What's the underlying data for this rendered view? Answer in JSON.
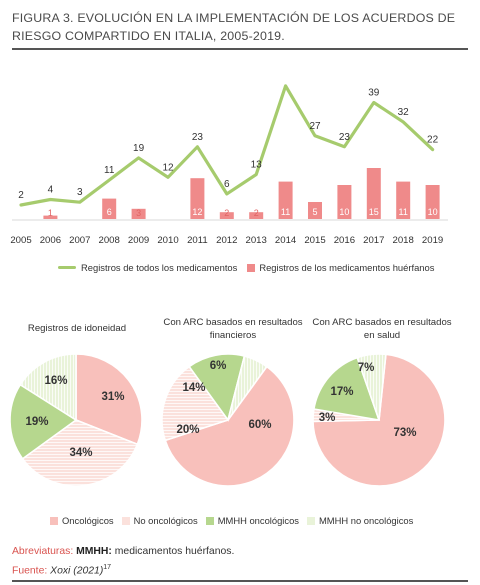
{
  "title": "Figura 3. Evolución en la implementación de los acuerdos de riesgo compartido en Italia, 2005-2019.",
  "colors": {
    "green_line": "#a6cb6d",
    "red_bar": "#ef8a8a",
    "oncologicos": "#f8c0bb",
    "no_oncologicos": "#fbe1dc",
    "mmhh_onco": "#b6d78e",
    "mmhh_no_onco": "#e9f3d9",
    "label_red": "#e06464"
  },
  "chart_data": [
    {
      "type": "line+bar",
      "categories": [
        "2005",
        "2006",
        "2007",
        "2008",
        "2009",
        "2010",
        "2011",
        "2012",
        "2013",
        "2014",
        "2015",
        "2016",
        "2017",
        "2018",
        "2019"
      ],
      "series": [
        {
          "name": "Registros de todos los medicamentos",
          "type": "line",
          "values": [
            2,
            4,
            3,
            11,
            19,
            12,
            23,
            6,
            13,
            45,
            27,
            23,
            39,
            32,
            22
          ],
          "labels": [
            "2",
            "4",
            "3",
            "11",
            "19",
            "12",
            "23",
            "6",
            "13",
            "",
            "27",
            "23",
            "39",
            "32",
            "22"
          ]
        },
        {
          "name": "Registros de los medicamentos huérfanos",
          "type": "bar",
          "values": [
            0,
            1,
            0,
            6,
            3,
            0,
            12,
            2,
            2,
            11,
            5,
            10,
            15,
            11,
            10
          ],
          "labels": [
            "",
            "1",
            "",
            "6",
            "3",
            "",
            "12",
            "2",
            "2",
            "11",
            "5",
            "10",
            "15",
            "11",
            "10"
          ]
        }
      ],
      "legend": "bottom"
    },
    {
      "type": "pie",
      "title": "Registros de idoneidad",
      "slices": [
        {
          "name": "Oncológicos",
          "value": 31,
          "label": "31%"
        },
        {
          "name": "No oncológicos",
          "value": 34,
          "label": "34%"
        },
        {
          "name": "MMHH oncológicos",
          "value": 19,
          "label": "19%"
        },
        {
          "name": "MMHH no oncológicos",
          "value": 16,
          "label": "16%"
        }
      ]
    },
    {
      "type": "pie",
      "title": "Con ARC basados en resultados financieros",
      "slices": [
        {
          "name": "Oncológicos",
          "value": 60,
          "label": "60%"
        },
        {
          "name": "No oncológicos",
          "value": 20,
          "label": "20%"
        },
        {
          "name": "MMHH oncológicos",
          "value": 14,
          "label": "14%"
        },
        {
          "name": "MMHH no oncológicos",
          "value": 6,
          "label": "6%"
        }
      ]
    },
    {
      "type": "pie",
      "title": "Con ARC basados en resultados en salud",
      "slices": [
        {
          "name": "Oncológicos",
          "value": 73,
          "label": "73%"
        },
        {
          "name": "No oncológicos",
          "value": 3,
          "label": "3%"
        },
        {
          "name": "MMHH oncológicos",
          "value": 17,
          "label": "17%"
        },
        {
          "name": "MMHH no oncológicos",
          "value": 7,
          "label": "7%"
        }
      ]
    }
  ],
  "pie_legend": [
    "Oncológicos",
    "No oncológicos",
    "MMHH oncológicos",
    "MMHH no oncológicos"
  ],
  "footnote": {
    "abbr_label": "Abreviaturas:",
    "abbr_term": "MMHH:",
    "abbr_text": "medicamentos huérfanos.",
    "source_label": "Fuente:",
    "source_text": "Xoxi (2021)",
    "source_ref": "17"
  }
}
